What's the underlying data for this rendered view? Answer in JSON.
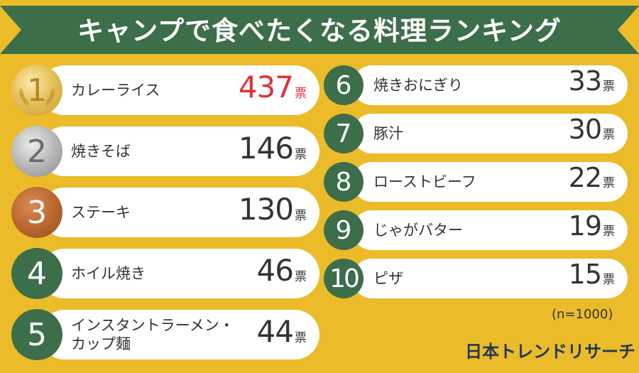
{
  "title": "キャンプで食べたくなる料理ランキング",
  "note": "(n=1000)",
  "logo": "日本トレンドリサーチ",
  "unit": "票",
  "colors": {
    "background": "#ebbb2a",
    "ribbon": "#3d6e4a",
    "highlight": "#e0303c"
  },
  "chart_data": {
    "type": "bar",
    "title": "キャンプで食べたくなる料理ランキング",
    "ranks": [
      "1",
      "2",
      "3",
      "4",
      "5",
      "6",
      "7",
      "8",
      "9",
      "10"
    ],
    "categories": [
      "カレーライス",
      "焼きそば",
      "ステーキ",
      "ホイル焼き",
      "インスタントラーメン・カップ麺",
      "焼きおにぎり",
      "豚汁",
      "ローストビーフ",
      "じゃがバター",
      "ピザ"
    ],
    "values": [
      437,
      146,
      130,
      46,
      44,
      33,
      30,
      22,
      19,
      15
    ],
    "unit": "票"
  },
  "rows": [
    {
      "rank": "1",
      "name": "カレーライス",
      "value": "437",
      "medal": "gold"
    },
    {
      "rank": "2",
      "name": "焼きそば",
      "value": "146",
      "medal": "silver"
    },
    {
      "rank": "3",
      "name": "ステーキ",
      "value": "130",
      "medal": "bronze"
    },
    {
      "rank": "4",
      "name": "ホイル焼き",
      "value": "46",
      "medal": "green"
    },
    {
      "rank": "5",
      "name": "インスタントラーメン・\nカップ麺",
      "value": "44",
      "medal": "green"
    },
    {
      "rank": "6",
      "name": "焼きおにぎり",
      "value": "33",
      "medal": "green"
    },
    {
      "rank": "7",
      "name": "豚汁",
      "value": "30",
      "medal": "green"
    },
    {
      "rank": "8",
      "name": "ローストビーフ",
      "value": "22",
      "medal": "green"
    },
    {
      "rank": "9",
      "name": "じゃがバター",
      "value": "19",
      "medal": "green"
    },
    {
      "rank": "10",
      "name": "ピザ",
      "value": "15",
      "medal": "green"
    }
  ]
}
